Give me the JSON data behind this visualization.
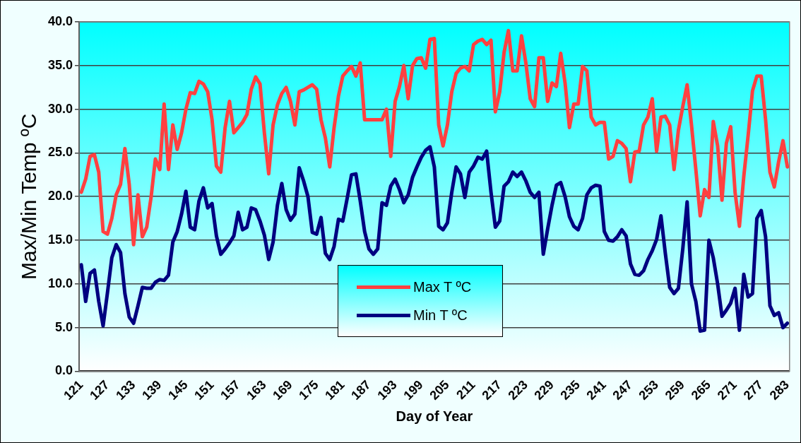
{
  "chart_data": {
    "type": "line",
    "xlabel": "Day of Year",
    "ylabel": "Max/Min Temp ºC",
    "x": [
      121,
      122,
      123,
      124,
      125,
      126,
      127,
      128,
      129,
      130,
      131,
      132,
      133,
      134,
      135,
      136,
      137,
      138,
      139,
      140,
      141,
      142,
      143,
      144,
      145,
      146,
      147,
      148,
      149,
      150,
      151,
      152,
      153,
      154,
      155,
      156,
      157,
      158,
      159,
      160,
      161,
      162,
      163,
      164,
      165,
      166,
      167,
      168,
      169,
      170,
      171,
      172,
      173,
      174,
      175,
      176,
      177,
      178,
      179,
      180,
      181,
      182,
      183,
      184,
      185,
      186,
      187,
      188,
      189,
      190,
      191,
      192,
      193,
      194,
      195,
      196,
      197,
      198,
      199,
      200,
      201,
      202,
      203,
      204,
      205,
      206,
      207,
      208,
      209,
      210,
      211,
      212,
      213,
      214,
      215,
      216,
      217,
      218,
      219,
      220,
      221,
      222,
      223,
      224,
      225,
      226,
      227,
      228,
      229,
      230,
      231,
      232,
      233,
      234,
      235,
      236,
      237,
      238,
      239,
      240,
      241,
      242,
      243,
      244,
      245,
      246,
      247,
      248,
      249,
      250,
      251,
      252,
      253,
      254,
      255,
      256,
      257,
      258,
      259,
      260,
      261,
      262,
      263,
      264,
      265,
      266,
      267,
      268,
      269,
      270,
      271,
      272,
      273,
      274,
      275,
      276,
      277,
      278,
      279,
      280,
      281,
      282,
      283
    ],
    "series": [
      {
        "name": "Max T ºC",
        "color": "#ff4040",
        "values": [
          20.5,
          22.0,
          24.6,
          24.8,
          22.8,
          16.0,
          15.7,
          17.5,
          20.2,
          21.4,
          25.5,
          21.4,
          14.5,
          20.2,
          15.4,
          16.5,
          19.9,
          24.3,
          23.1,
          30.6,
          23.1,
          28.2,
          25.4,
          27.3,
          30.0,
          31.9,
          31.8,
          33.2,
          32.9,
          32.0,
          28.8,
          23.5,
          22.8,
          27.9,
          30.9,
          27.3,
          27.9,
          28.5,
          29.4,
          32.3,
          33.7,
          32.9,
          27.3,
          22.6,
          28.2,
          30.5,
          31.8,
          32.5,
          30.9,
          28.2,
          32.0,
          32.2,
          32.5,
          32.8,
          32.3,
          28.8,
          26.7,
          23.4,
          27.9,
          31.5,
          33.8,
          34.4,
          34.9,
          33.8,
          35.3,
          28.8,
          28.8,
          28.8,
          28.8,
          28.8,
          30.0,
          24.6,
          30.9,
          32.6,
          35.0,
          31.2,
          35.0,
          35.8,
          35.9,
          34.7,
          38.0,
          38.1,
          28.2,
          25.8,
          28.2,
          32.0,
          34.1,
          34.7,
          34.9,
          34.4,
          37.4,
          37.8,
          38.0,
          37.4,
          37.9,
          29.7,
          32.0,
          36.5,
          39.0,
          34.4,
          34.4,
          38.4,
          35.3,
          31.2,
          30.3,
          35.9,
          35.9,
          30.9,
          33.0,
          32.6,
          36.4,
          33.0,
          27.9,
          30.6,
          30.6,
          34.9,
          34.4,
          29.1,
          28.2,
          28.5,
          28.5,
          24.3,
          24.6,
          26.4,
          26.1,
          25.5,
          21.7,
          25.1,
          25.2,
          28.2,
          29.1,
          31.2,
          25.2,
          29.1,
          29.2,
          28.2,
          23.1,
          27.6,
          30.3,
          32.8,
          28.2,
          23.1,
          17.8,
          20.8,
          19.9,
          28.6,
          25.8,
          19.6,
          26.1,
          28.0,
          20.5,
          16.6,
          22.3,
          27.0,
          32.1,
          33.8,
          33.8,
          28.8,
          22.8,
          21.1,
          24.0,
          26.4,
          23.4
        ]
      },
      {
        "name": "Min T ºC",
        "color": "#000080",
        "values": [
          12.2,
          8.0,
          11.2,
          11.6,
          8.0,
          5.2,
          9.0,
          13.0,
          14.5,
          13.6,
          8.9,
          6.2,
          5.5,
          7.5,
          9.6,
          9.5,
          9.5,
          10.2,
          10.5,
          10.4,
          11.0,
          14.8,
          16.0,
          18.0,
          20.6,
          16.5,
          16.2,
          19.5,
          21.0,
          18.7,
          19.2,
          15.5,
          13.4,
          14.0,
          14.7,
          15.5,
          18.2,
          16.2,
          16.5,
          18.7,
          18.5,
          17.2,
          15.6,
          12.8,
          14.8,
          19.0,
          21.5,
          18.5,
          17.3,
          18.0,
          23.3,
          21.8,
          20.0,
          15.9,
          15.7,
          17.6,
          13.5,
          12.8,
          14.3,
          17.4,
          17.2,
          19.8,
          22.5,
          22.6,
          19.5,
          16.0,
          14.0,
          13.4,
          14.0,
          19.3,
          19.0,
          21.2,
          22.0,
          20.8,
          19.3,
          20.2,
          22.2,
          23.4,
          24.5,
          25.3,
          25.7,
          23.4,
          16.6,
          16.2,
          17.0,
          20.5,
          23.4,
          22.6,
          19.9,
          22.8,
          23.5,
          24.5,
          24.3,
          25.2,
          20.5,
          16.5,
          17.2,
          21.2,
          21.7,
          22.8,
          22.3,
          22.8,
          21.8,
          20.5,
          19.9,
          20.5,
          13.4,
          16.3,
          19.0,
          21.3,
          21.6,
          20.0,
          17.7,
          16.6,
          16.2,
          17.5,
          20.2,
          21.0,
          21.3,
          21.2,
          16.0,
          15.0,
          14.9,
          15.4,
          16.2,
          15.5,
          12.3,
          11.1,
          11.0,
          11.5,
          12.8,
          13.8,
          15.1,
          17.8,
          13.5,
          9.6,
          8.9,
          9.5,
          14.0,
          19.4,
          10.0,
          8.0,
          4.6,
          4.7,
          15.0,
          13.0,
          10.0,
          6.3,
          7.0,
          7.8,
          9.5,
          4.7,
          11.1,
          8.5,
          8.9,
          17.5,
          18.4,
          15.4,
          7.5,
          6.4,
          6.7,
          5.0,
          5.5
        ]
      }
    ],
    "xlim": [
      120.5,
      283.5
    ],
    "xticks": [
      121,
      127,
      133,
      139,
      145,
      151,
      157,
      163,
      169,
      175,
      181,
      187,
      193,
      199,
      205,
      211,
      217,
      223,
      229,
      235,
      241,
      247,
      253,
      259,
      265,
      271,
      277,
      283
    ],
    "ylim": [
      0,
      40
    ],
    "yticks": [
      {
        "value": 0,
        "label": "0.0"
      },
      {
        "value": 5,
        "label": "5.0"
      },
      {
        "value": 10,
        "label": "10.0"
      },
      {
        "value": 15,
        "label": "15.0"
      },
      {
        "value": 20,
        "label": "20.0"
      },
      {
        "value": 25,
        "label": "25.0"
      },
      {
        "value": 30,
        "label": "30.0"
      },
      {
        "value": 35,
        "label": "35.0"
      },
      {
        "value": 40,
        "label": "40.0"
      }
    ],
    "grid": "y",
    "legend": "bottom",
    "marker": "none",
    "line_style": "solid"
  }
}
